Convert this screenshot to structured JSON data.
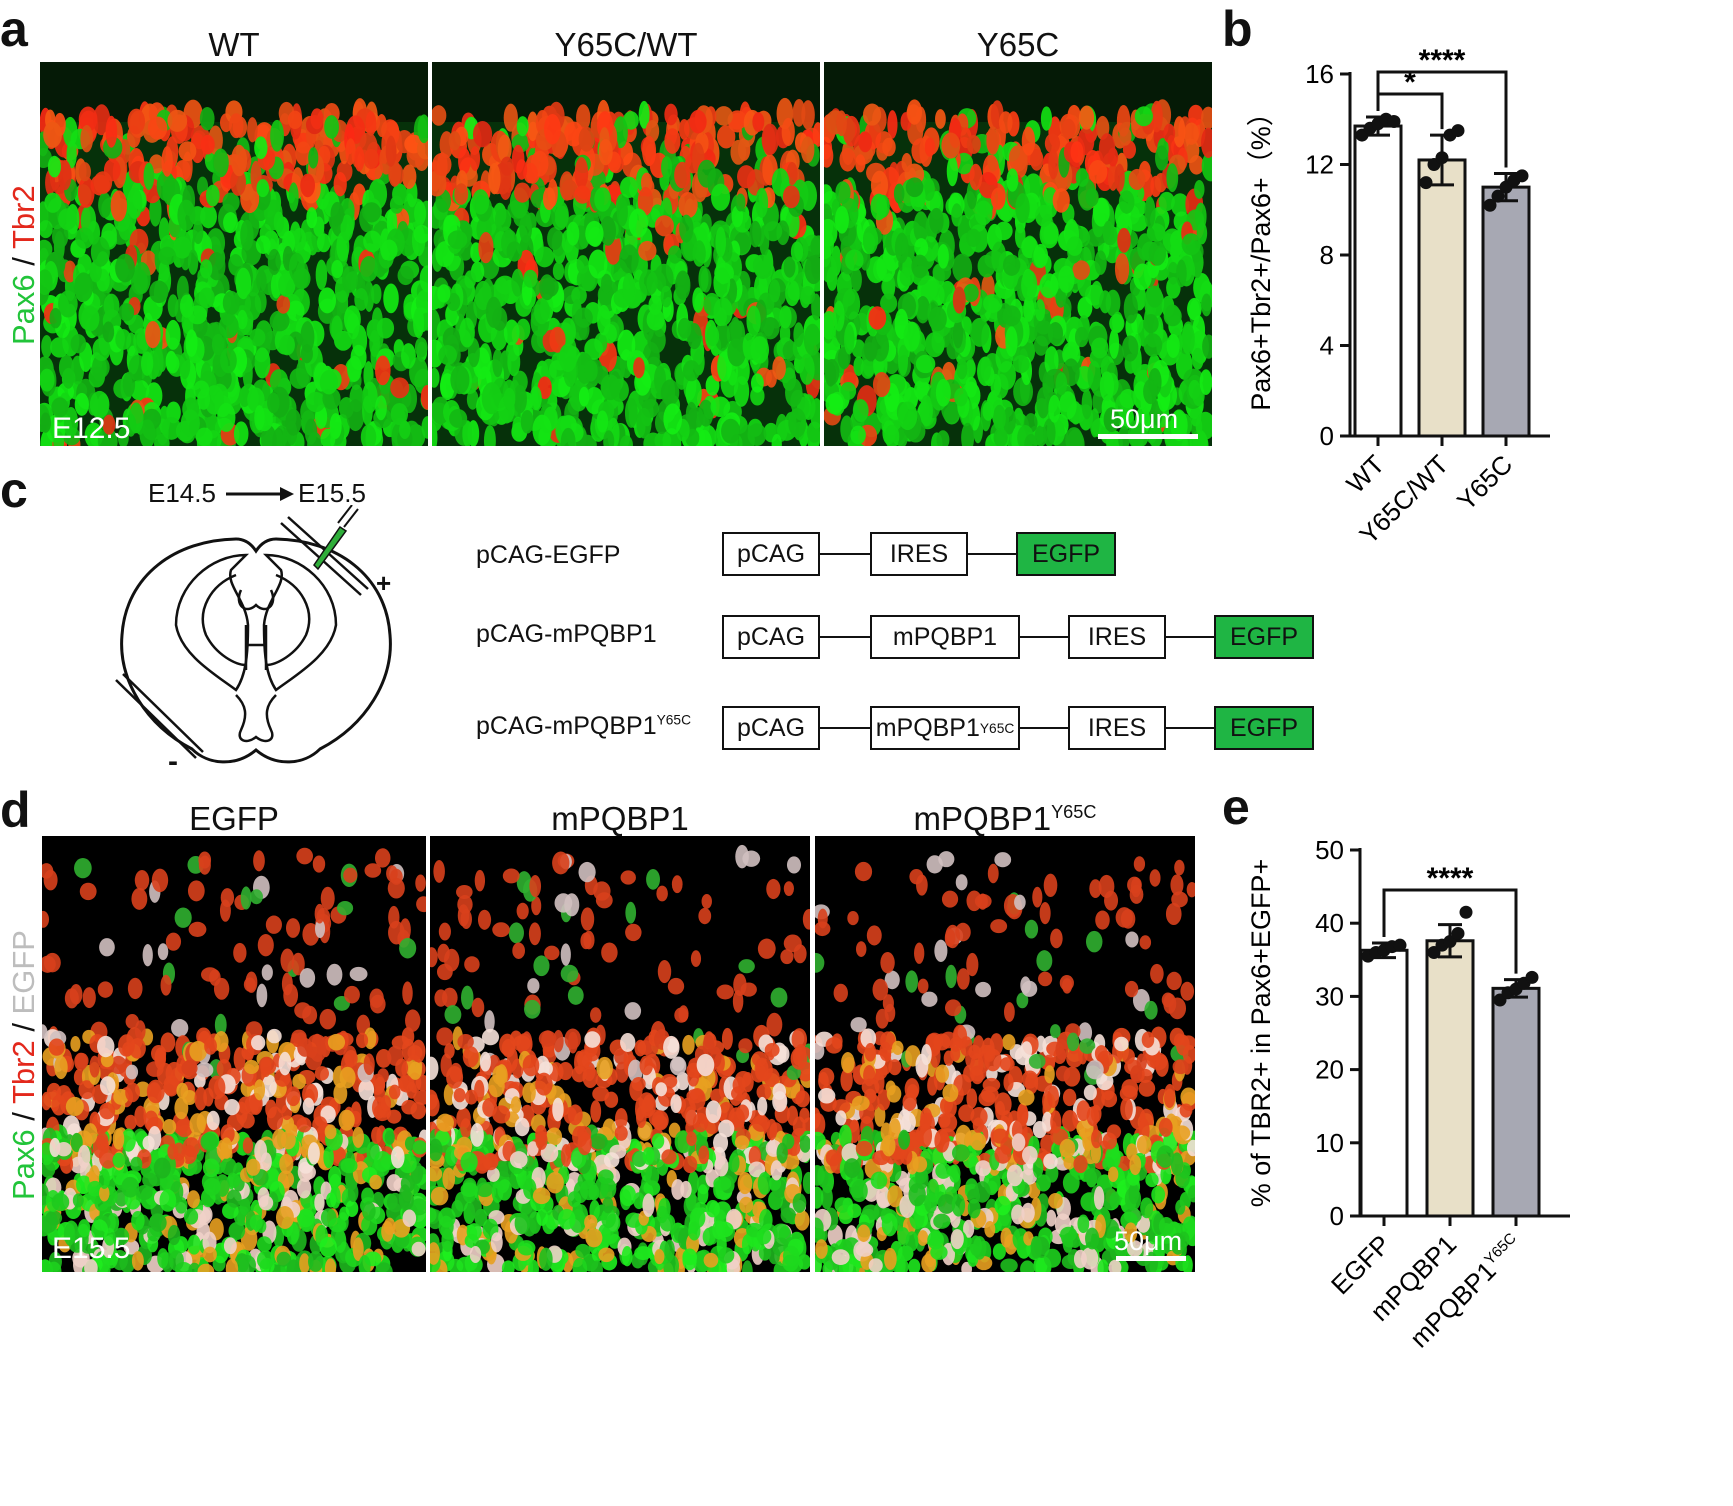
{
  "panels": {
    "a": {
      "letter": "a",
      "titles": [
        "WT",
        "Y65C/WT",
        "Y65C"
      ],
      "stain_pax6": "Pax6",
      "stain_sep": " / ",
      "stain_tbr2": "Tbr2",
      "stage": "E12.5",
      "scale": "50μm"
    },
    "b": {
      "letter": "b"
    },
    "c": {
      "letter": "c",
      "from": "E14.5",
      "to": "E15.5",
      "plus": "+",
      "minus": "-",
      "constructs": [
        {
          "name": "pCAG-EGFP",
          "parts": [
            "pCAG",
            "IRES",
            "EGFP"
          ]
        },
        {
          "name": "pCAG-mPQBP1",
          "parts": [
            "pCAG",
            "mPQBP1",
            "IRES",
            "EGFP"
          ]
        },
        {
          "name": "pCAG-mPQBP1",
          "name_sup": "Y65C",
          "parts": [
            "pCAG",
            "mPQBP1",
            "IRES",
            "EGFP"
          ],
          "part_sup": "Y65C"
        }
      ]
    },
    "d": {
      "letter": "d",
      "titles": [
        "EGFP",
        "mPQBP1",
        "mPQBP1"
      ],
      "title_sup": "Y65C",
      "stain_pax6": "Pax6",
      "stain_tbr2": "Tbr2",
      "stain_egfp": "EGFP",
      "stain_sep": " / ",
      "stage": "E15.5",
      "scale": "50μm"
    },
    "e": {
      "letter": "e"
    }
  },
  "chart_data": [
    {
      "type": "bar",
      "panel": "b",
      "categories": [
        "WT",
        "Y65C/WT",
        "Y65C"
      ],
      "values": [
        13.7,
        12.2,
        11.0
      ],
      "errors": [
        0.4,
        1.1,
        0.6
      ],
      "points": [
        [
          13.3,
          13.6,
          13.8,
          14.0,
          13.9
        ],
        [
          11.2,
          12.0,
          12.3,
          13.3,
          13.5
        ],
        [
          10.2,
          10.6,
          11.0,
          11.3,
          11.5
        ]
      ],
      "bar_colors": [
        "#ffffff",
        "#e8e0c8",
        "#a7a8b3"
      ],
      "ylabel": "Pax6+Tbr2+/Pax6+（%）",
      "ylim": [
        0,
        16
      ],
      "yticks": [
        0,
        4,
        8,
        12,
        16
      ],
      "significance": [
        {
          "from": 0,
          "to": 1,
          "label": "*"
        },
        {
          "from": 0,
          "to": 2,
          "label": "****"
        }
      ]
    },
    {
      "type": "bar",
      "panel": "e",
      "categories": [
        "EGFP",
        "mPQBP1",
        "mPQBP1"
      ],
      "category_sup": [
        null,
        null,
        "Y65C"
      ],
      "values": [
        36.3,
        37.6,
        31.1
      ],
      "errors": [
        1.0,
        2.2,
        1.2
      ],
      "points": [
        [
          35.5,
          36.0,
          36.3,
          36.8,
          37.0
        ],
        [
          36.0,
          37.0,
          37.5,
          38.6,
          41.5
        ],
        [
          29.5,
          30.5,
          31.0,
          31.8,
          32.6
        ]
      ],
      "bar_colors": [
        "#ffffff",
        "#e8e0c8",
        "#a7a8b3"
      ],
      "ylabel": "% of TBR2+ in Pax6+EGFP+",
      "ylim": [
        0,
        50
      ],
      "yticks": [
        0,
        10,
        20,
        30,
        40,
        50
      ],
      "significance": [
        {
          "from": 0,
          "to": 2,
          "label": "****"
        }
      ]
    }
  ]
}
